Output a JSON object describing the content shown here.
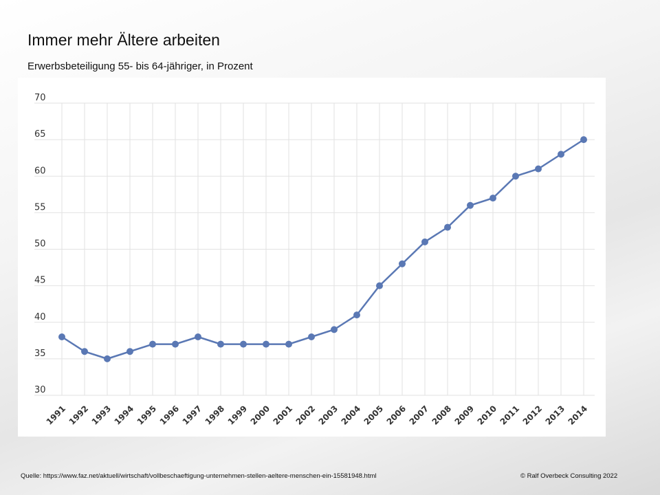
{
  "slide": {
    "title": "Immer mehr Ältere arbeiten",
    "subtitle": "Erwerbsbeteiligung 55- bis 64-jähriger, in Prozent",
    "source": "Quelle: https://www.faz.net/aktuell/wirtschaft/vollbeschaeftigung-unternehmen-stellen-aeltere-menschen-ein-15581948.html",
    "copyright": "© Ralf Overbeck Consulting 2022"
  },
  "chart_data": {
    "type": "line",
    "title": "Immer mehr Ältere arbeiten",
    "subtitle": "Erwerbsbeteiligung 55- bis 64-jähriger, in Prozent",
    "xlabel": "",
    "ylabel": "",
    "ylim": [
      30,
      70
    ],
    "yticks": [
      "30",
      "35",
      "40",
      "45",
      "50",
      "55",
      "60",
      "65",
      "70"
    ],
    "grid": true,
    "categories": [
      "1991",
      "1992",
      "1993",
      "1994",
      "1995",
      "1996",
      "1997",
      "1998",
      "1999",
      "2000",
      "2001",
      "2002",
      "2003",
      "2004",
      "2005",
      "2006",
      "2007",
      "2008",
      "2009",
      "2010",
      "2011",
      "2012",
      "2013",
      "2014"
    ],
    "series": [
      {
        "name": "Erwerbsbeteiligung 55-64",
        "color": "#5a78b4",
        "values": [
          38,
          36,
          35,
          36,
          37,
          37,
          38,
          37,
          37,
          37,
          37,
          38,
          39,
          41,
          45,
          48,
          51,
          53,
          56,
          57,
          60,
          61,
          63,
          65
        ]
      }
    ]
  }
}
